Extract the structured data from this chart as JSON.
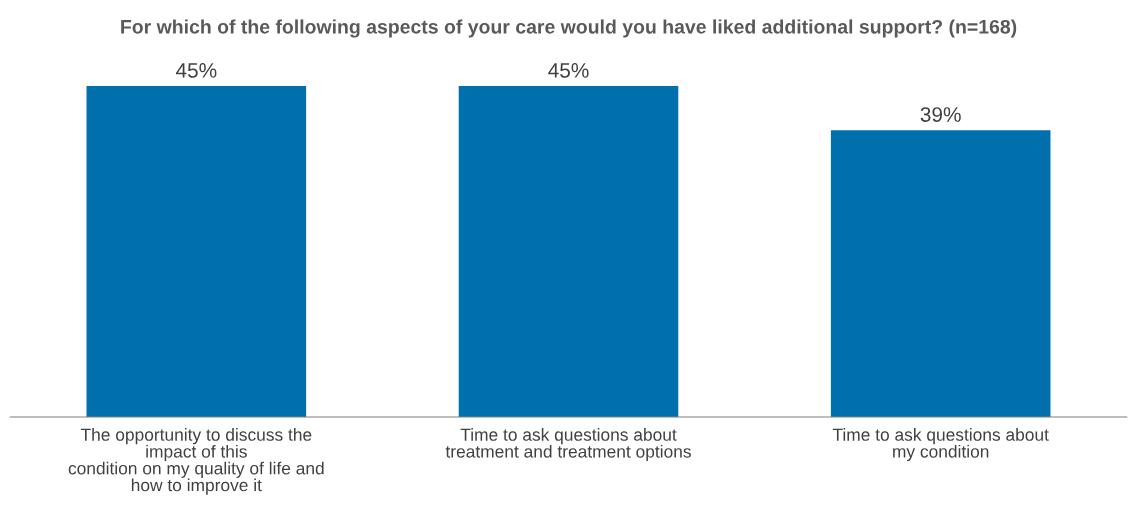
{
  "chart_data": {
    "type": "bar",
    "title": "For which of the following aspects of your care would you have liked additional support? (n=168)",
    "categories": [
      "The opportunity to discuss the\nimpact of this\ncondition on my quality of life and\nhow to improve it",
      "Time to ask questions about\ntreatment and treatment options",
      "Time to ask questions about\nmy condition"
    ],
    "values": [
      45,
      45,
      39
    ],
    "value_labels": [
      "45%",
      "45%",
      "39%"
    ],
    "color": "#0070ad",
    "grid": false,
    "legend": false
  }
}
